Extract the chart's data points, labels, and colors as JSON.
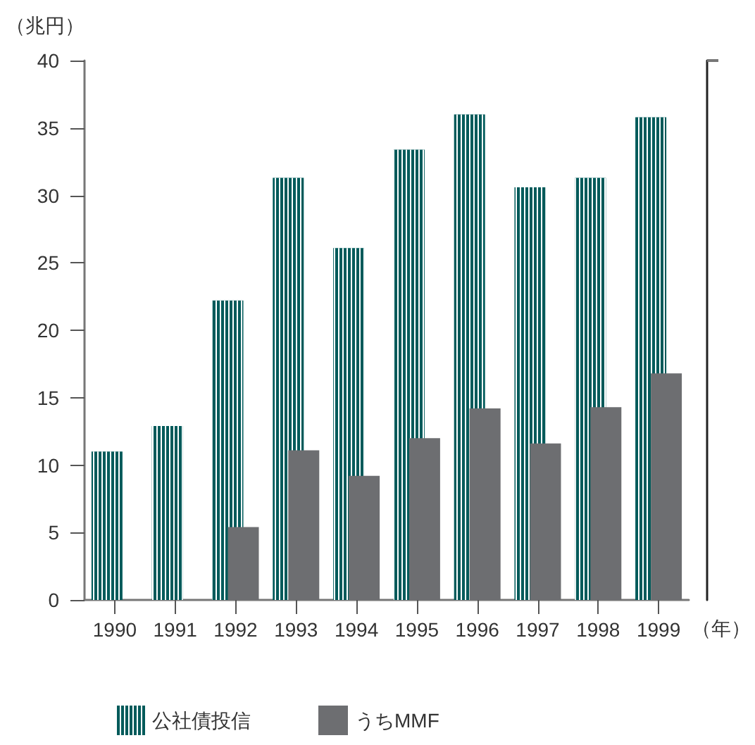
{
  "chart_data": {
    "type": "bar",
    "ylabel": "（兆円）",
    "xlabel": "（年）",
    "categories": [
      "1990",
      "1991",
      "1992",
      "1993",
      "1994",
      "1995",
      "1996",
      "1997",
      "1998",
      "1999"
    ],
    "series": [
      {
        "name": "公社債投信",
        "color": "#005a5a",
        "values": [
          11.0,
          12.9,
          22.2,
          31.3,
          26.1,
          33.4,
          36.0,
          30.6,
          31.3,
          35.8
        ]
      },
      {
        "name": "うちMMF",
        "color": "#6d6e71",
        "values": [
          null,
          null,
          5.4,
          11.1,
          9.2,
          12.0,
          14.2,
          11.6,
          14.3,
          16.8
        ]
      }
    ],
    "ylim": [
      0,
      40
    ],
    "yticks": [
      0,
      5,
      10,
      15,
      20,
      25,
      30,
      35,
      40
    ],
    "grid": false,
    "legend": "bottom"
  }
}
